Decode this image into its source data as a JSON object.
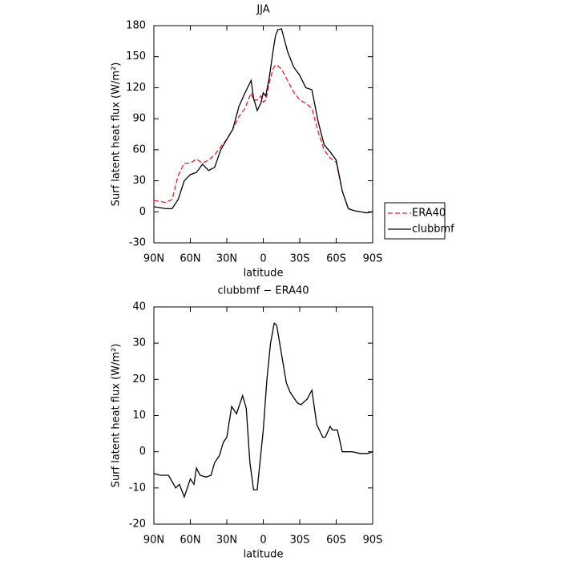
{
  "chart_data": [
    {
      "type": "line",
      "title": "JJA",
      "xlabel": "latitude",
      "ylabel": "Surf latent heat flux (W/m²)",
      "x": [
        90,
        85,
        80,
        75,
        70,
        65,
        60,
        55,
        50,
        45,
        40,
        35,
        30,
        25,
        20,
        15,
        10,
        8,
        5,
        2,
        0,
        -2,
        -5,
        -8,
        -10,
        -12,
        -15,
        -20,
        -25,
        -30,
        -35,
        -40,
        -45,
        -50,
        -55,
        -60,
        -65,
        -70,
        -75,
        -80,
        -85,
        -90
      ],
      "series": [
        {
          "name": "ERA40",
          "color": "#e8202a",
          "dashed": true,
          "values": [
            11,
            10,
            9,
            12,
            35,
            47,
            47,
            51,
            47,
            50,
            55,
            63,
            70,
            80,
            92,
            100,
            115,
            108,
            108,
            112,
            106,
            108,
            125,
            138,
            142,
            141,
            138,
            127,
            116,
            108,
            105,
            100,
            78,
            60,
            52,
            48,
            20,
            3,
            1,
            0,
            -1,
            0
          ]
        },
        {
          "name": "clubbmf",
          "color": "#000000",
          "dashed": false,
          "values": [
            5,
            4,
            3,
            3,
            12,
            30,
            36,
            38,
            46,
            40,
            43,
            60,
            70,
            80,
            102,
            115,
            127,
            110,
            98,
            105,
            115,
            112,
            130,
            155,
            170,
            176,
            177,
            155,
            140,
            132,
            120,
            118,
            88,
            65,
            58,
            50,
            20,
            3,
            1,
            0,
            -1,
            0
          ]
        }
      ],
      "xlim": [
        90,
        -90
      ],
      "xticks": [
        {
          "value": 90,
          "label": "90N"
        },
        {
          "value": 60,
          "label": "60N"
        },
        {
          "value": 30,
          "label": "30N"
        },
        0,
        {
          "value": -30,
          "label": "30S"
        },
        {
          "value": -60,
          "label": "60S"
        },
        {
          "value": -90,
          "label": "90S"
        }
      ],
      "ylim": [
        -30,
        180
      ],
      "yticks": [
        -30,
        0,
        30,
        60,
        90,
        120,
        150,
        180
      ],
      "legend": "right"
    },
    {
      "type": "line",
      "title": "clubbmf − ERA40",
      "xlabel": "latitude",
      "ylabel": "Surf latent heat flux (W/m²)",
      "x": [
        90,
        85,
        78,
        72,
        69,
        65,
        60,
        57,
        55,
        52,
        47,
        43,
        40,
        36,
        33,
        30,
        26,
        22,
        17,
        14,
        11,
        8,
        5,
        0,
        -3,
        -6,
        -9,
        -11,
        -15,
        -19,
        -22,
        -28,
        -31,
        -36,
        -40,
        -44,
        -49,
        -51,
        -55,
        -57,
        -61,
        -65,
        -73,
        -80,
        -86,
        -90
      ],
      "series": [
        {
          "name": "clubbmf − ERA40",
          "color": "#000000",
          "dashed": false,
          "values": [
            -6,
            -6.5,
            -6.5,
            -10,
            -9,
            -12.5,
            -7.5,
            -9,
            -4.5,
            -6.5,
            -7,
            -6.5,
            -3,
            -1,
            2.5,
            4,
            12.5,
            10.5,
            15.5,
            12,
            -3,
            -10.5,
            -10.5,
            6,
            20,
            30,
            35.5,
            35,
            27,
            19,
            16.5,
            13.5,
            13,
            14.5,
            17,
            7.5,
            4,
            4,
            7,
            6,
            6,
            0,
            0,
            -0.5,
            -0.5,
            0
          ]
        }
      ],
      "xlim": [
        90,
        -90
      ],
      "xticks": [
        {
          "value": 90,
          "label": "90N"
        },
        {
          "value": 60,
          "label": "60N"
        },
        {
          "value": 30,
          "label": "30N"
        },
        0,
        {
          "value": -30,
          "label": "30S"
        },
        {
          "value": -60,
          "label": "60S"
        },
        {
          "value": -90,
          "label": "90S"
        }
      ],
      "ylim": [
        -20,
        40
      ],
      "yticks": [
        -20,
        -10,
        0,
        10,
        20,
        30,
        40
      ]
    }
  ]
}
